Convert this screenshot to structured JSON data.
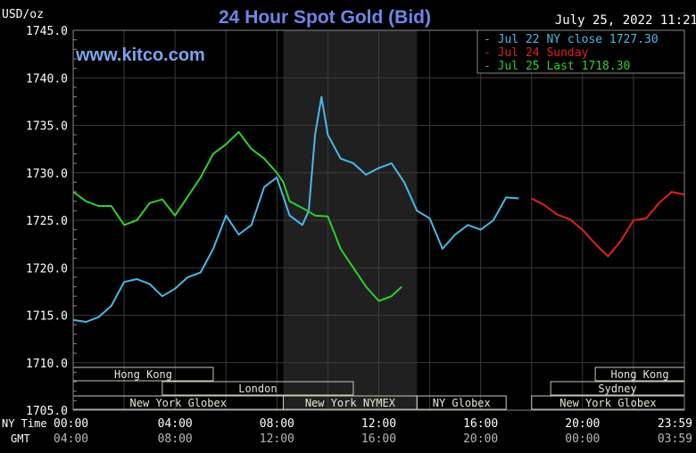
{
  "chart_data": {
    "type": "line",
    "title": "24 Hour Spot Gold (Bid)",
    "watermark": "www.kitco.com",
    "timestamp": "July 25, 2022 11:21",
    "ylabel": "USD/oz",
    "ylim": [
      1705,
      1745
    ],
    "yticks": [
      "1745.0",
      "1740.0",
      "1735.0",
      "1730.0",
      "1725.0",
      "1720.0",
      "1715.0",
      "1710.0",
      "1705.0"
    ],
    "ytick_values": [
      1745,
      1740,
      1735,
      1730,
      1725,
      1720,
      1715,
      1710,
      1705
    ],
    "x_row_labels": [
      "NY Time",
      "GMT"
    ],
    "xlim_hours": [
      0,
      24
    ],
    "xticks_ny": [
      "00:00",
      "04:00",
      "08:00",
      "12:00",
      "16:00",
      "20:00",
      "23:59"
    ],
    "xticks_gmt": [
      "04:00",
      "08:00",
      "12:00",
      "16:00",
      "20:00",
      "00:00",
      "03:59"
    ],
    "xtick_hours": [
      0,
      4,
      8,
      12,
      16,
      20,
      24
    ],
    "highlight_hours": [
      8.25,
      13.5
    ],
    "grid": true,
    "legend_position": "top-right",
    "legend": [
      {
        "label": "Jul 22 NY close 1727.30",
        "color": "#4ab8e8"
      },
      {
        "label": "Jul 24 Sunday",
        "color": "#e02020"
      },
      {
        "label": "Jul 25 Last 1718.30",
        "color": "#2ed02e"
      }
    ],
    "sessions": [
      {
        "name": "Hong Kong",
        "start": 0,
        "end": 5.5,
        "row": 0
      },
      {
        "name": "Hong Kong",
        "start": 20.5,
        "end": 24,
        "row": 0
      },
      {
        "name": "London",
        "start": 3.5,
        "end": 11,
        "row": 1
      },
      {
        "name": "Sydney",
        "start": 18.75,
        "end": 24,
        "row": 1
      },
      {
        "name": "New York Globex",
        "start": 0,
        "end": 8.25,
        "row": 2
      },
      {
        "name": "New York NYMEX",
        "start": 8.25,
        "end": 13.5,
        "row": 2
      },
      {
        "name": "NY Globex",
        "start": 13.5,
        "end": 17,
        "row": 2
      },
      {
        "name": "New York Globex",
        "start": 18,
        "end": 24,
        "row": 2
      }
    ],
    "series": [
      {
        "name": "Jul 22 NY close 1727.30",
        "color": "#4ab8e8",
        "x": [
          0,
          0.5,
          1,
          1.5,
          2,
          2.5,
          3,
          3.5,
          4,
          4.5,
          5,
          5.5,
          6,
          6.5,
          7,
          7.5,
          8,
          8.5,
          9,
          9.25,
          9.5,
          9.75,
          10,
          10.5,
          11,
          11.5,
          12,
          12.5,
          13,
          13.5,
          14,
          14.5,
          15,
          15.5,
          16,
          16.5,
          17,
          17.5
        ],
        "y": [
          1714.5,
          1714.3,
          1714.8,
          1716,
          1718.5,
          1718.8,
          1718.3,
          1717,
          1717.8,
          1719,
          1719.5,
          1722,
          1725.5,
          1723.5,
          1724.5,
          1728.5,
          1729.5,
          1725.5,
          1724.5,
          1726,
          1734,
          1738,
          1734,
          1731.5,
          1731,
          1729.8,
          1730.5,
          1731,
          1729,
          1726,
          1725.2,
          1722,
          1723.5,
          1724.5,
          1724,
          1725,
          1727.4,
          1727.3
        ]
      },
      {
        "name": "Jul 24 Sunday",
        "color": "#e02020",
        "x": [
          18,
          18.5,
          19,
          19.5,
          20,
          20.5,
          21,
          21.5,
          22,
          22.5,
          23,
          23.5,
          24
        ],
        "y": [
          1727.3,
          1726.6,
          1725.6,
          1725.1,
          1724,
          1722.5,
          1721.2,
          1722.8,
          1725,
          1725.2,
          1726.8,
          1728,
          1727.7
        ]
      },
      {
        "name": "Jul 25 Last 1718.30",
        "color": "#2ed02e",
        "x": [
          0,
          0.5,
          1,
          1.5,
          2,
          2.5,
          3,
          3.5,
          4,
          4.5,
          5,
          5.5,
          6,
          6.5,
          7,
          7.5,
          8,
          8.25,
          8.5,
          9,
          9.5,
          10,
          10.5,
          11,
          11.5,
          12,
          12.5,
          12.9
        ],
        "y": [
          1728,
          1727,
          1726.5,
          1726.5,
          1724.5,
          1725,
          1726.8,
          1727.2,
          1725.5,
          1727.5,
          1729.5,
          1732,
          1733,
          1734.3,
          1732.5,
          1731.5,
          1730,
          1729,
          1727,
          1726.3,
          1725.5,
          1725.4,
          1722,
          1720,
          1718,
          1716.5,
          1717,
          1718
        ]
      }
    ]
  }
}
